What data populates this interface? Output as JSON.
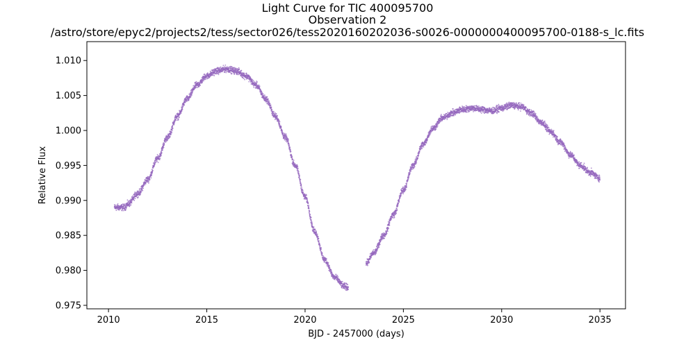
{
  "chart_data": {
    "type": "scatter",
    "title": [
      "Light Curve for TIC 400095700",
      "Observation 2",
      "/astro/store/epyc2/projects2/tess/sector026/tess2020160202036-s0026-0000000400095700-0188-s_lc.fits"
    ],
    "xlabel": "BJD - 2457000 (days)",
    "ylabel": "Relative Flux",
    "xlim": [
      2008.9,
      2036.3
    ],
    "ylim": [
      0.9745,
      1.0127
    ],
    "xticks": [
      2010,
      2015,
      2020,
      2025,
      2030,
      2035
    ],
    "xtick_labels": [
      "2010",
      "2015",
      "2020",
      "2025",
      "2030",
      "2035"
    ],
    "yticks": [
      0.975,
      0.98,
      0.985,
      0.99,
      0.995,
      1.0,
      1.005,
      1.01
    ],
    "ytick_labels": [
      "0.975",
      "0.980",
      "0.985",
      "0.990",
      "0.995",
      "1.000",
      "1.005",
      "1.010"
    ],
    "grid": false,
    "marker_color": "#9467bd",
    "series": [
      {
        "segments": [
          {
            "x": [
              2010.3,
              2010.5,
              2010.8,
              2011.0,
              2011.5,
              2012.0,
              2012.5,
              2013.0,
              2013.5,
              2014.0,
              2014.5,
              2015.0,
              2015.5,
              2016.0,
              2016.5,
              2017.0,
              2017.5,
              2018.0,
              2018.5,
              2019.0,
              2019.5,
              2020.0,
              2020.5,
              2021.0,
              2021.5,
              2022.0,
              2022.2
            ],
            "y": [
              0.989,
              0.989,
              0.989,
              0.9895,
              0.991,
              0.993,
              0.996,
              0.999,
              1.002,
              1.0045,
              1.0065,
              1.0078,
              1.0085,
              1.0088,
              1.0085,
              1.0078,
              1.0065,
              1.0045,
              1.002,
              0.999,
              0.995,
              0.9905,
              0.9855,
              0.9815,
              0.979,
              0.9777,
              0.9776
            ]
          },
          {
            "x": [
              2023.1,
              2023.5,
              2024.0,
              2024.5,
              2025.0,
              2025.5,
              2026.0,
              2026.5,
              2027.0,
              2027.5,
              2028.0,
              2028.5,
              2029.0,
              2029.5,
              2030.0,
              2030.5,
              2031.0,
              2031.5,
              2032.0,
              2032.5,
              2033.0,
              2033.5,
              2034.0,
              2034.5,
              2035.0
            ],
            "y": [
              0.981,
              0.9825,
              0.985,
              0.988,
              0.9915,
              0.995,
              0.998,
              1.0003,
              1.0018,
              1.0025,
              1.003,
              1.0032,
              1.003,
              1.0028,
              1.0032,
              1.0036,
              1.0034,
              1.0025,
              1.0012,
              0.9998,
              0.9983,
              0.9965,
              0.995,
              0.994,
              0.9932
            ]
          }
        ]
      }
    ]
  }
}
